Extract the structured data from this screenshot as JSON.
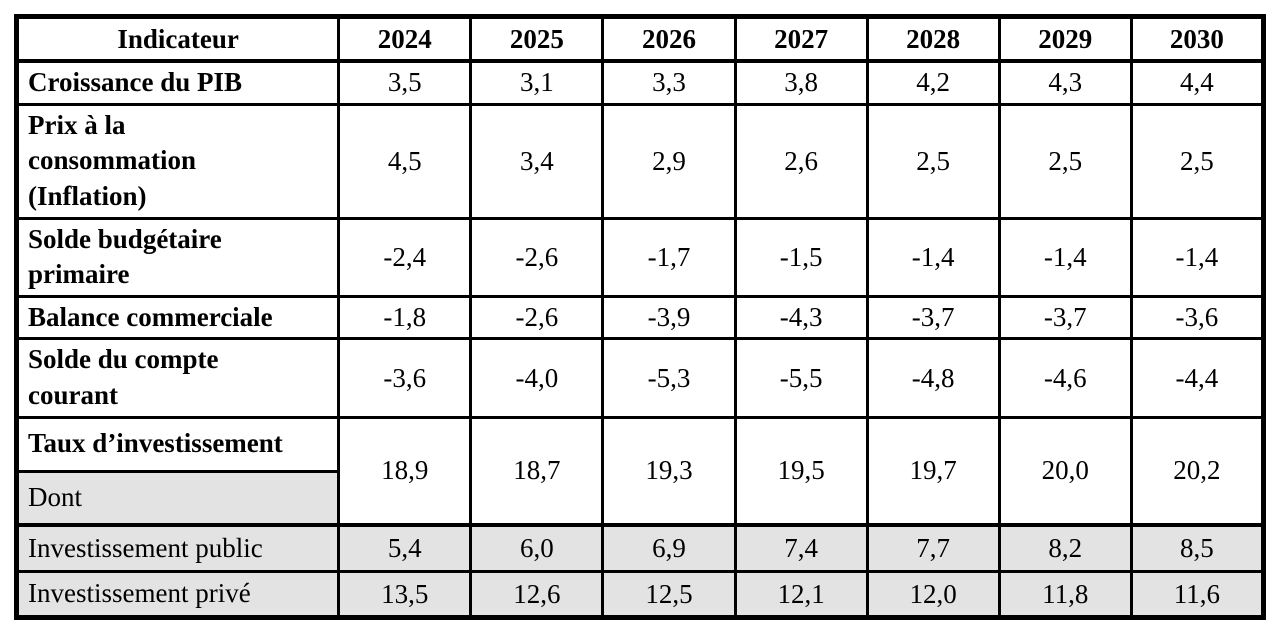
{
  "page": {
    "background_color": "#ffffff",
    "border_color": "#000000",
    "shading_color": "#e3e3e3"
  },
  "table": {
    "header": {
      "indicator_label": "Indicateur",
      "years": [
        "2024",
        "2025",
        "2026",
        "2027",
        "2028",
        "2029",
        "2030"
      ]
    },
    "rows": [
      {
        "label": "Croissance du PIB",
        "values": [
          "3,5",
          "3,1",
          "3,3",
          "3,8",
          "4,2",
          "4,3",
          "4,4"
        ]
      },
      {
        "label": "Prix à la\nconsommation\n(Inflation)",
        "values": [
          "4,5",
          "3,4",
          "2,9",
          "2,6",
          "2,5",
          "2,5",
          "2,5"
        ]
      },
      {
        "label": "Solde budgétaire\nprimaire",
        "values": [
          "-2,4",
          "-2,6",
          "-1,7",
          "-1,5",
          "-1,4",
          "-1,4",
          "-1,4"
        ]
      },
      {
        "label": "Balance commerciale",
        "values": [
          "-1,8",
          "-2,6",
          "-3,9",
          "-4,3",
          "-3,7",
          "-3,7",
          "-3,6"
        ]
      },
      {
        "label": "Solde du compte\ncourant",
        "values": [
          "-3,6",
          "-4,0",
          "-5,3",
          "-5,5",
          "-4,8",
          "-4,6",
          "-4,4"
        ]
      }
    ],
    "investment_rate": {
      "label": "Taux d’investissement",
      "sub_label": "Dont",
      "values": [
        "18,9",
        "18,7",
        "19,3",
        "19,5",
        "19,7",
        "20,0",
        "20,2"
      ]
    },
    "investment_breakdown": [
      {
        "label": "Investissement public",
        "values": [
          "5,4",
          "6,0",
          "6,9",
          "7,4",
          "7,7",
          "8,2",
          "8,5"
        ]
      },
      {
        "label": "Investissement privé",
        "values": [
          "13,5",
          "12,6",
          "12,5",
          "12,1",
          "12,0",
          "11,8",
          "11,6"
        ]
      }
    ]
  }
}
